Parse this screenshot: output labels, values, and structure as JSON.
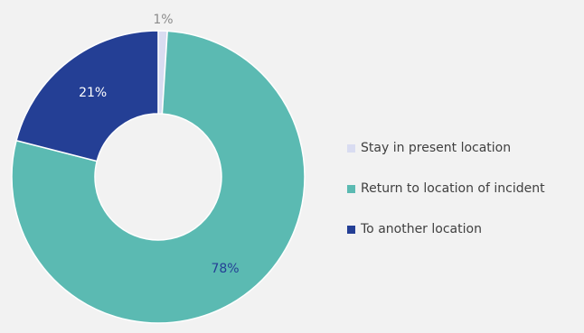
{
  "chart_data": {
    "type": "pie",
    "donut": true,
    "categories": [
      "Stay in present location",
      "Return to location of incident",
      "To another location"
    ],
    "values": [
      1,
      78,
      21
    ],
    "labels": [
      "1%",
      "78%",
      "21%"
    ],
    "colors": [
      "#d9dcf1",
      "#5bbab2",
      "#243f95"
    ],
    "label_colors": [
      "#8c8c8c",
      "#243f95",
      "#ffffff"
    ],
    "legend_position": "right"
  }
}
